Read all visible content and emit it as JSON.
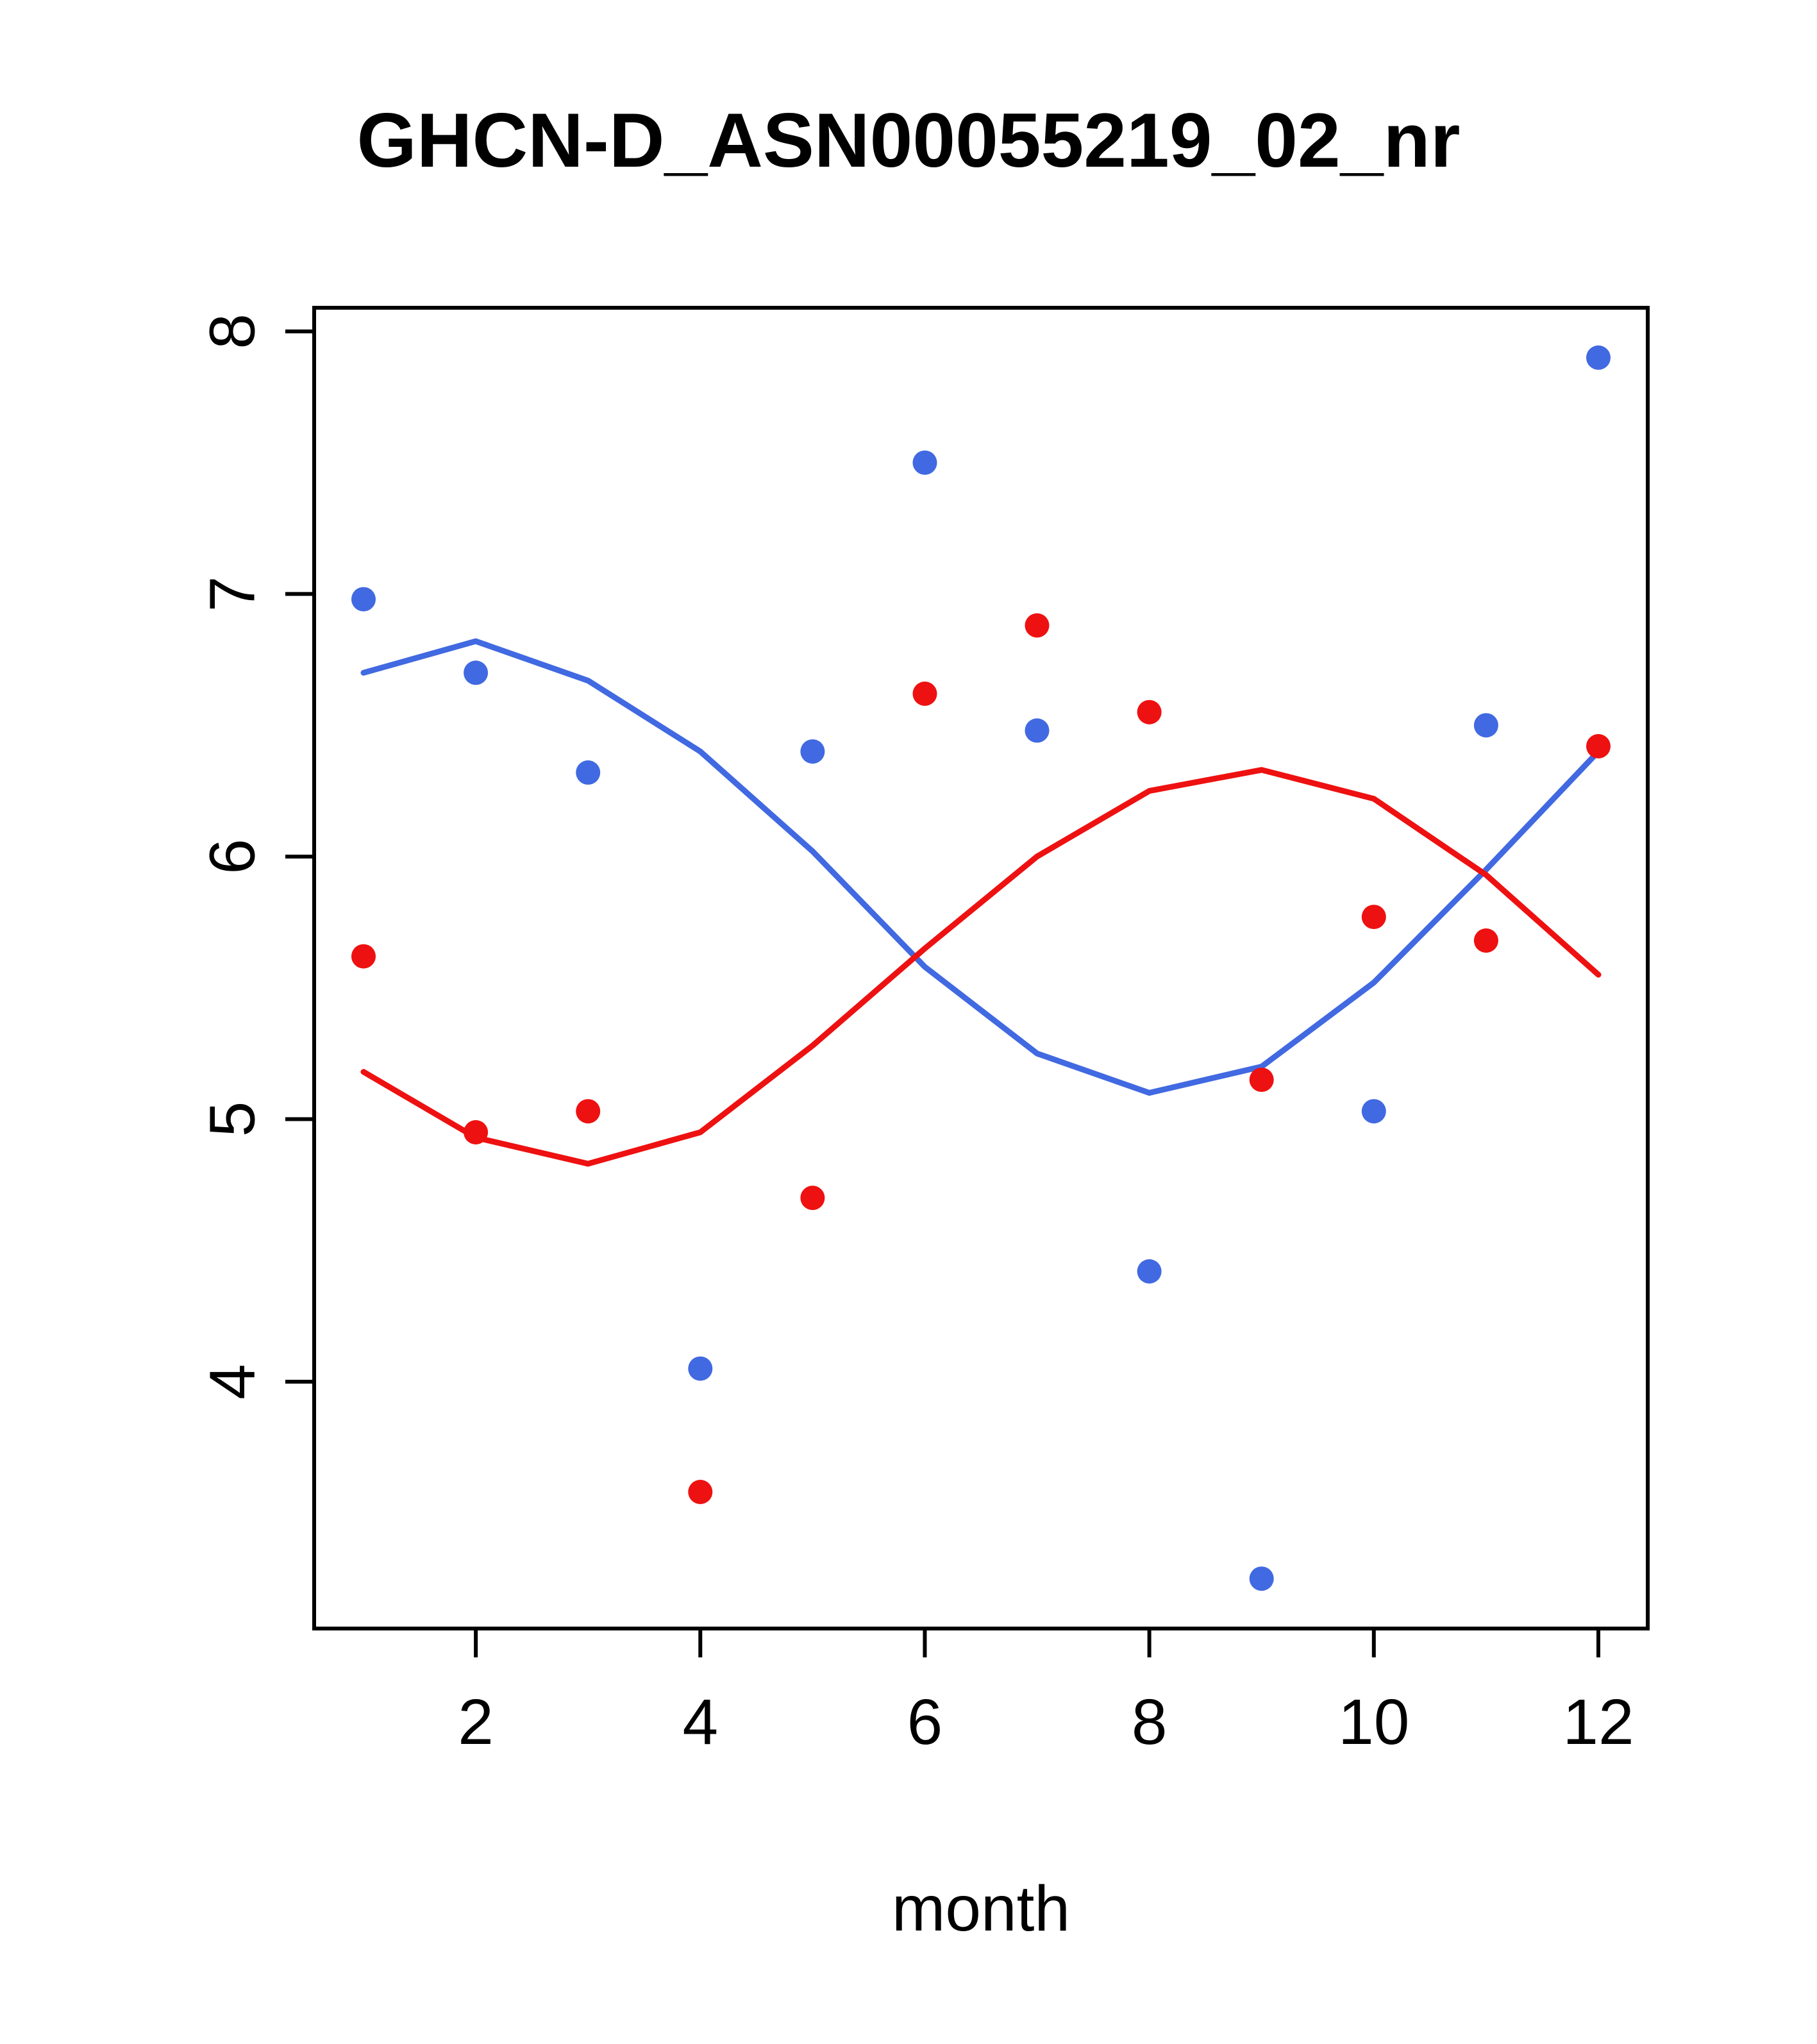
{
  "title": "GHCN-D_ASN00055219_02_nr",
  "chart_data": {
    "type": "scatter",
    "title": "GHCN-D_ASN00055219_02_nr",
    "xlabel": "month",
    "ylabel": "",
    "xlim": [
      0.56,
      12.44
    ],
    "ylim": [
      3.06,
      8.09
    ],
    "x_ticks": [
      2,
      4,
      6,
      8,
      10,
      12
    ],
    "y_ticks": [
      4,
      5,
      6,
      7,
      8
    ],
    "grid": false,
    "legend": null,
    "x": [
      1,
      2,
      3,
      4,
      5,
      6,
      7,
      8,
      9,
      10,
      11,
      12
    ],
    "series": [
      {
        "name": "blue-points",
        "kind": "points",
        "color": "#4169E1",
        "values": [
          6.98,
          6.7,
          6.32,
          4.05,
          6.4,
          7.5,
          6.48,
          4.42,
          3.25,
          5.03,
          6.5,
          7.9
        ]
      },
      {
        "name": "red-points",
        "kind": "points",
        "color": "#EE1111",
        "values": [
          5.62,
          4.95,
          5.03,
          3.58,
          4.7,
          6.62,
          6.88,
          6.55,
          5.15,
          5.77,
          5.68,
          6.42
        ]
      },
      {
        "name": "blue-smooth-line",
        "kind": "line",
        "color": "#4169E1",
        "values": [
          6.7,
          6.82,
          6.67,
          6.4,
          6.02,
          5.58,
          5.25,
          5.1,
          5.2,
          5.52,
          5.95,
          6.4
        ]
      },
      {
        "name": "red-smooth-line",
        "kind": "line",
        "color": "#EE1111",
        "values": [
          5.18,
          4.93,
          4.83,
          4.95,
          5.28,
          5.65,
          6.0,
          6.25,
          6.33,
          6.22,
          5.93,
          5.55
        ]
      }
    ]
  }
}
